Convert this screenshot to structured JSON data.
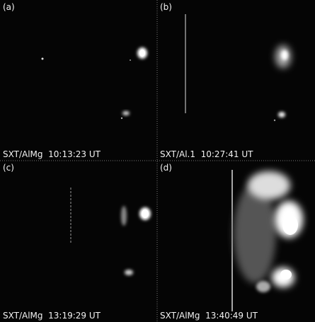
{
  "panels": [
    {
      "label": "(a)",
      "caption": "SXT/AlMg  10:13:23 UT"
    },
    {
      "label": "(b)",
      "caption": "SXT/Al.1  10:27:41 UT"
    },
    {
      "label": "(c)",
      "caption": "SXT/AlMg  13:19:29 UT"
    },
    {
      "label": "(d)",
      "caption": "SXT/AlMg  13:40:49 UT"
    }
  ]
}
